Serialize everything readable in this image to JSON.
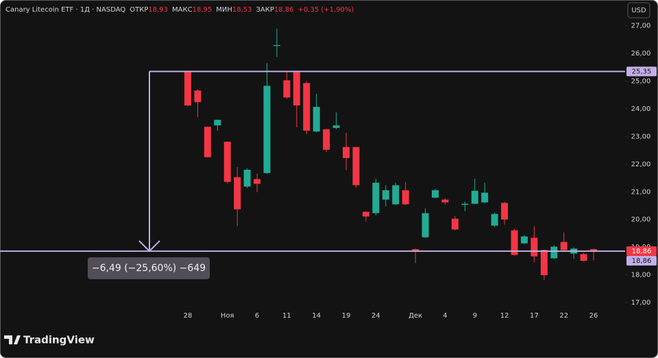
{
  "chart_data": {
    "type": "candlestick",
    "title": "Canary Litecoin ETF · 1Д · NASDAQ",
    "header": [
      {
        "label": "ОТКР",
        "value": "18,93"
      },
      {
        "label": "МАКС",
        "value": "18,95"
      },
      {
        "label": "МИН",
        "value": "18,53"
      },
      {
        "label": "ЗАКР",
        "value": "18,86"
      }
    ],
    "change": "+0,35 (+1,90%)",
    "categories": [
      "28",
      null,
      null,
      null,
      "Ноя",
      null,
      null,
      "6",
      null,
      null,
      "11",
      null,
      null,
      "14",
      null,
      null,
      "19",
      null,
      null,
      "24",
      null,
      null,
      null,
      "Дек",
      null,
      null,
      "4",
      null,
      null,
      "9",
      null,
      null,
      "12",
      null,
      null,
      "17",
      null,
      null,
      "22",
      null,
      null,
      "26"
    ],
    "open": [
      25.35,
      24.66,
      23.35,
      23.4,
      22.81,
      21.53,
      21.19,
      21.46,
      21.68,
      26.27,
      25.03,
      25.33,
      24.93,
      23.18,
      23.26,
      23.31,
      22.62,
      22.62,
      20.28,
      20.23,
      20.72,
      20.55,
      21.06,
      18.93,
      19.36,
      20.79,
      20.72,
      20.03,
      20.53,
      20.57,
      20.62,
      19.78,
      20.6,
      19.61,
      19.14,
      19.34,
      18.9,
      18.6,
      19.19,
      18.77,
      18.75,
      18.93
    ],
    "high": [
      25.35,
      24.7,
      23.35,
      23.62,
      22.81,
      21.9,
      21.85,
      21.66,
      25.65,
      26.9,
      25.35,
      25.35,
      25.0,
      24.54,
      23.28,
      23.87,
      23.13,
      22.62,
      20.3,
      21.48,
      21.24,
      21.33,
      21.36,
      18.95,
      20.4,
      21.11,
      20.77,
      20.13,
      20.65,
      21.48,
      21.33,
      20.25,
      20.65,
      19.66,
      19.44,
      19.76,
      18.92,
      19.07,
      19.54,
      19.0,
      18.8,
      18.95
    ],
    "low": [
      24.1,
      23.7,
      22.25,
      23.21,
      21.3,
      19.76,
      21.14,
      20.99,
      21.65,
      25.87,
      24.36,
      23.33,
      23.08,
      23.15,
      22.44,
      23.26,
      21.78,
      21.15,
      19.93,
      20.15,
      20.47,
      20.52,
      20.52,
      18.43,
      19.34,
      20.77,
      20.55,
      19.61,
      20.3,
      20.55,
      20.6,
      19.73,
      19.81,
      18.7,
      19.12,
      18.45,
      17.81,
      18.58,
      18.85,
      18.58,
      18.48,
      18.53
    ],
    "close": [
      24.12,
      24.24,
      22.25,
      23.6,
      21.36,
      20.37,
      21.8,
      21.29,
      24.83,
      26.3,
      24.41,
      24.12,
      23.21,
      24.07,
      22.52,
      23.4,
      22.22,
      21.24,
      20.11,
      21.33,
      21.06,
      21.24,
      20.55,
      18.88,
      20.23,
      21.06,
      20.62,
      19.64,
      20.57,
      21.04,
      20.97,
      20.2,
      20.0,
      18.72,
      19.39,
      18.67,
      17.99,
      19.02,
      18.9,
      18.95,
      18.51,
      18.86
    ],
    "up_color": "#22ab94",
    "down_color": "#f23645",
    "ylim": [
      16.68,
      27.93
    ],
    "yticks": [
      {
        "value": 17,
        "label": "17,00"
      },
      {
        "value": 18,
        "label": "18,00"
      },
      {
        "value": 19,
        "label": "19,00"
      },
      {
        "value": 20,
        "label": "20,00"
      },
      {
        "value": 21,
        "label": "21,00"
      },
      {
        "value": 22,
        "label": "22,00"
      },
      {
        "value": 23,
        "label": "23,00"
      },
      {
        "value": 24,
        "label": "24,00"
      },
      {
        "value": 25,
        "label": "25,00"
      },
      {
        "value": 26,
        "label": "26,00"
      },
      {
        "value": 27,
        "label": "27,00"
      }
    ],
    "grid": false,
    "last_price": 18.86,
    "last_price_label": "18,86",
    "measure": {
      "from": 25.35,
      "to": 18.86,
      "from_label": "25,35",
      "to_label": "18,86",
      "label": "−6,49 (−25,60%) −649",
      "color": "#c3aee8"
    }
  },
  "ui": {
    "currency": "USD",
    "brand": "TradingView"
  }
}
